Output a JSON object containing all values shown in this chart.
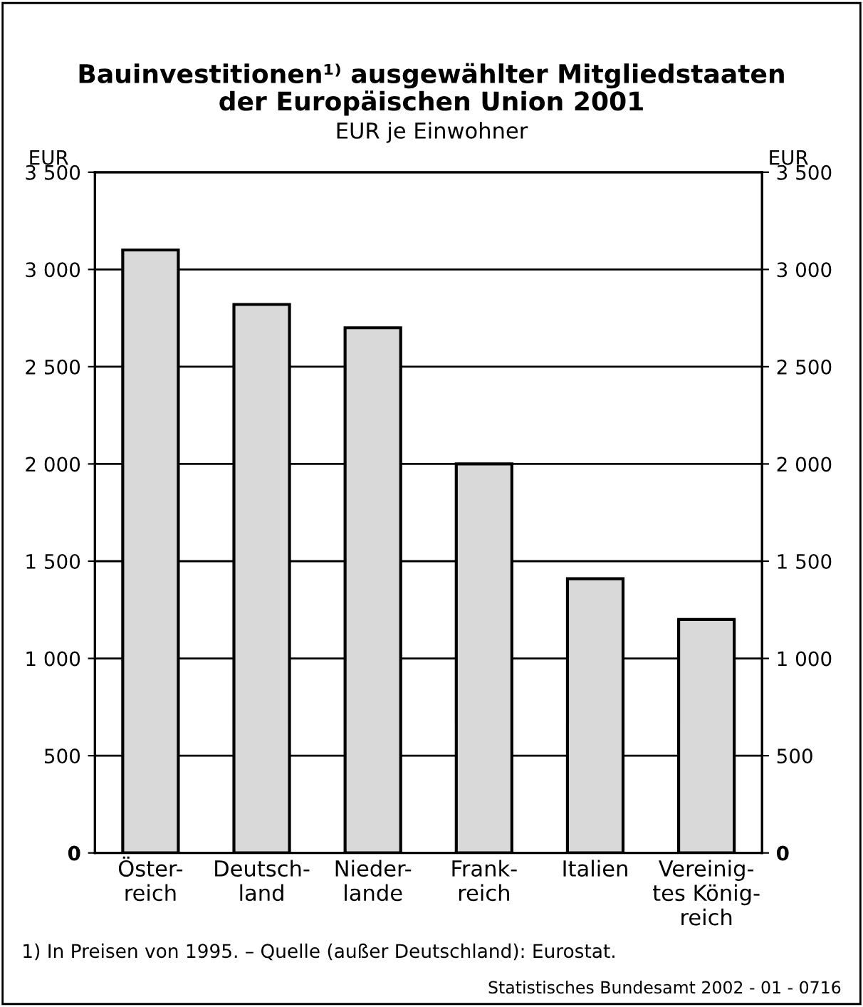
{
  "chart_data": {
    "type": "bar",
    "title": "Bauinvestitionen¹⁾ ausgewählter Mitgliedstaaten\nder Europäischen Union 2001",
    "subtitle": "EUR je Einwohner",
    "ylabel": "EUR",
    "y2label": "EUR",
    "categories": [
      "Öster-\nreich",
      "Deutsch-\nland",
      "Nieder-\nlande",
      "Frank-\nreich",
      "Italien",
      "Vereinig-\ntes König-\nreich"
    ],
    "values": [
      3100,
      2820,
      2700,
      2000,
      1410,
      1200
    ],
    "color": "#d9d9d9",
    "ylim": [
      0,
      3500
    ],
    "yticks": [
      0,
      500,
      {
        "value": 1000,
        "label": "1 000"
      },
      {
        "value": 1500,
        "label": "1 500"
      },
      {
        "value": 2000,
        "label": "2 000"
      },
      {
        "value": 2500,
        "label": "2 500"
      },
      {
        "value": 3000,
        "label": "3 000"
      },
      {
        "value": 3500,
        "label": "3 500"
      }
    ],
    "y2lim": [
      0,
      3500
    ],
    "y2ticks": [
      0,
      500,
      {
        "value": 1000,
        "label": "1 000"
      },
      {
        "value": 1500,
        "label": "1 500"
      },
      {
        "value": 2000,
        "label": "2 000"
      },
      {
        "value": 2500,
        "label": "2 500"
      },
      {
        "value": 3000,
        "label": "3 000"
      },
      {
        "value": 3500,
        "label": "3 500"
      }
    ],
    "grid": "y",
    "legend": false,
    "annotations": [
      "1) In Preisen von 1995. – Quelle (außer Deutschland): Eurostat.",
      "Statistisches Bundesamt 2002 - 01 - 0716"
    ]
  }
}
